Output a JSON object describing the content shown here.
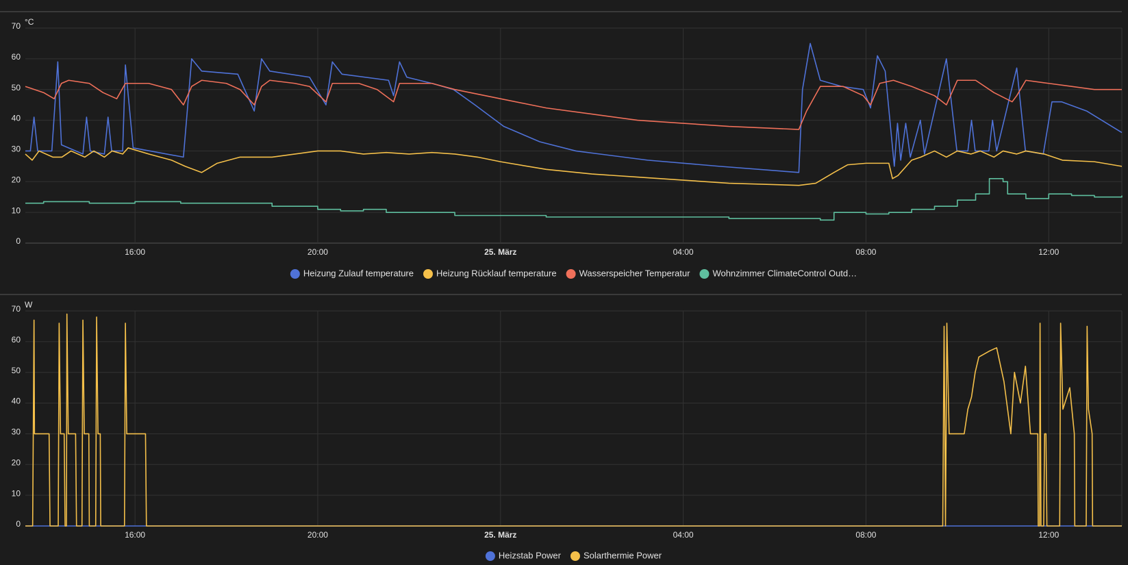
{
  "chart_data": [
    {
      "type": "line",
      "unit": "°C",
      "grid": true,
      "xlim": [
        13.6,
        37.6
      ],
      "xticks": [
        {
          "value": 16,
          "label": "16:00"
        },
        {
          "value": 20,
          "label": "20:00"
        },
        {
          "value": 24,
          "label": "25. März",
          "bold": true
        },
        {
          "value": 28,
          "label": "04:00"
        },
        {
          "value": 32,
          "label": "08:00"
        },
        {
          "value": 36,
          "label": "12:00"
        }
      ],
      "ylim": [
        0,
        70
      ],
      "yticks": [
        0,
        10,
        20,
        30,
        40,
        50,
        60,
        70
      ],
      "series": [
        {
          "name": "Heizung Zulauf temperature",
          "color": "#4f72d8",
          "x": [
            13.6,
            13.71,
            13.79,
            13.87,
            14.18,
            14.31,
            14.39,
            14.86,
            14.94,
            15.02,
            15.33,
            15.41,
            15.49,
            15.73,
            15.79,
            15.96,
            17.06,
            17.24,
            17.46,
            18.25,
            18.61,
            18.77,
            18.95,
            19.82,
            20.18,
            20.32,
            20.53,
            21.55,
            21.66,
            21.79,
            21.95,
            22.5,
            22.97,
            23.44,
            24.07,
            24.86,
            25.65,
            27.22,
            28.8,
            30.53,
            30.61,
            30.78,
            31.0,
            31.47,
            31.94,
            32.1,
            32.25,
            32.42,
            32.62,
            32.69,
            32.76,
            32.87,
            32.97,
            33.19,
            33.28,
            33.76,
            33.99,
            34.23,
            34.31,
            34.39,
            34.69,
            34.77,
            34.86,
            35.3,
            35.49,
            35.88,
            36.07,
            36.28,
            36.83,
            37.6
          ],
          "values": [
            30,
            30,
            41,
            30,
            30,
            59,
            32,
            29,
            41,
            30,
            29,
            41,
            30,
            30,
            58,
            31,
            28,
            60,
            56,
            55,
            43,
            60,
            56,
            54,
            45,
            59,
            55,
            53,
            48,
            59,
            54,
            52,
            50,
            45,
            38,
            33,
            30,
            27,
            25,
            23,
            50,
            65,
            53,
            51,
            50,
            44,
            61,
            56,
            25,
            39,
            27,
            39,
            28,
            40,
            29,
            60,
            30,
            30,
            40,
            30,
            30,
            40,
            30,
            57,
            30,
            29,
            46,
            46,
            43,
            36
          ]
        },
        {
          "name": "Heizung Rücklauf temperature",
          "color": "#f5c04a",
          "x": [
            13.6,
            13.75,
            13.9,
            14.2,
            14.4,
            14.6,
            14.9,
            15.1,
            15.33,
            15.5,
            15.73,
            15.85,
            16.3,
            16.8,
            17.1,
            17.46,
            17.8,
            18.3,
            19.0,
            19.5,
            20.0,
            20.5,
            21.0,
            21.5,
            22.0,
            22.5,
            23.0,
            23.5,
            24.0,
            25.0,
            26.0,
            27.0,
            28.0,
            29.0,
            30.53,
            30.9,
            31.3,
            31.6,
            32.0,
            32.5,
            32.58,
            32.7,
            33.0,
            33.2,
            33.5,
            33.76,
            34.0,
            34.3,
            34.5,
            34.8,
            35.0,
            35.3,
            35.5,
            35.9,
            36.3,
            37.0,
            37.6
          ],
          "values": [
            29,
            27,
            30,
            28,
            28,
            30,
            28,
            30,
            28,
            30,
            29,
            31,
            29,
            27,
            25,
            23,
            26,
            28,
            28,
            29,
            30,
            30,
            29,
            29.5,
            29,
            29.5,
            29,
            28,
            26.5,
            24,
            22.5,
            21.5,
            20.5,
            19.5,
            18.8,
            19.5,
            23,
            25.5,
            26,
            26,
            21,
            22,
            27,
            28,
            30,
            28,
            30,
            29,
            30,
            28,
            30,
            29,
            30,
            29,
            27,
            26.5,
            25
          ]
        },
        {
          "name": "Wasserspeicher Temperatur",
          "color": "#f0705a",
          "x": [
            13.6,
            14.0,
            14.23,
            14.39,
            14.55,
            15.0,
            15.3,
            15.6,
            15.79,
            16.3,
            16.8,
            17.06,
            17.24,
            17.46,
            18.0,
            18.3,
            18.61,
            18.77,
            18.95,
            19.5,
            19.82,
            20.18,
            20.32,
            20.9,
            21.3,
            21.66,
            21.79,
            22.5,
            23.0,
            24.0,
            25.0,
            26.0,
            27.0,
            28.0,
            29.0,
            30.53,
            30.7,
            31.0,
            31.5,
            31.94,
            32.1,
            32.3,
            32.6,
            33.0,
            33.5,
            33.76,
            34.0,
            34.4,
            34.8,
            35.2,
            35.3,
            35.5,
            36.0,
            36.5,
            37.0,
            37.6
          ],
          "values": [
            51,
            49,
            47,
            52,
            53,
            52,
            49,
            47,
            52,
            52,
            50,
            45,
            51,
            53,
            52,
            50,
            45,
            51,
            53,
            52,
            51,
            46,
            52,
            52,
            50,
            46,
            52,
            52,
            50,
            47,
            44,
            42,
            40,
            39,
            38,
            37,
            43,
            51,
            51,
            48,
            45,
            52,
            53,
            51,
            48,
            45,
            53,
            53,
            49,
            46,
            48,
            53,
            52,
            51,
            50,
            50
          ]
        },
        {
          "name": "Wohnzimmer ClimateControl Outd…",
          "color": "#5fbf9f",
          "step": true,
          "x": [
            13.6,
            14.0,
            14.5,
            15.0,
            16.0,
            17.0,
            18.0,
            19.0,
            20.0,
            20.5,
            21.0,
            21.5,
            22.0,
            23.0,
            24.0,
            25.0,
            28.0,
            29.0,
            30.0,
            31.0,
            31.3,
            32.0,
            32.5,
            33.0,
            33.5,
            34.0,
            34.4,
            34.7,
            35.0,
            35.1,
            35.5,
            36.0,
            36.5,
            37.0,
            37.6
          ],
          "values": [
            13,
            13.5,
            13.5,
            13,
            13.5,
            13,
            13,
            12,
            11,
            10.5,
            11,
            10,
            10,
            9,
            9,
            8.5,
            8.5,
            8,
            8,
            7.5,
            10,
            9.5,
            10,
            11,
            12,
            14,
            16,
            21,
            20,
            16,
            14.5,
            16,
            15.5,
            15,
            15.5
          ]
        }
      ]
    },
    {
      "type": "line",
      "unit": "W",
      "grid": true,
      "xlim": [
        13.6,
        37.6
      ],
      "xticks": [
        {
          "value": 16,
          "label": "16:00"
        },
        {
          "value": 20,
          "label": "20:00"
        },
        {
          "value": 24,
          "label": "25. März",
          "bold": true
        },
        {
          "value": 28,
          "label": "04:00"
        },
        {
          "value": 32,
          "label": "08:00"
        },
        {
          "value": 36,
          "label": "12:00"
        }
      ],
      "ylim": [
        0,
        70
      ],
      "yticks": [
        0,
        10,
        20,
        30,
        40,
        50,
        60,
        70
      ],
      "series": [
        {
          "name": "Heizstab Power",
          "color": "#4f72d8",
          "x": [
            13.6,
            37.6
          ],
          "values": [
            0,
            0
          ]
        },
        {
          "name": "Solarthermie Power",
          "color": "#f5c04a",
          "x": [
            13.6,
            13.76,
            13.79,
            13.8,
            14.12,
            14.14,
            14.32,
            14.34,
            14.37,
            14.45,
            14.47,
            14.5,
            14.51,
            14.54,
            14.7,
            14.72,
            14.84,
            14.86,
            14.89,
            14.99,
            15.0,
            15.14,
            15.16,
            15.19,
            15.24,
            15.25,
            15.77,
            15.79,
            15.82,
            16.23,
            16.25,
            33.68,
            33.71,
            33.74,
            33.77,
            33.82,
            34.15,
            34.23,
            34.31,
            34.39,
            34.47,
            34.71,
            34.86,
            35.02,
            35.17,
            35.25,
            35.38,
            35.49,
            35.6,
            35.76,
            35.77,
            35.8,
            35.81,
            35.83,
            35.89,
            35.91,
            35.94,
            35.96,
            36.24,
            36.26,
            36.31,
            36.46,
            36.56,
            36.57,
            36.82,
            36.84,
            36.87,
            36.95,
            36.96,
            37.6
          ],
          "values": [
            0,
            0,
            67,
            30,
            30,
            0,
            0,
            66,
            30,
            30,
            0,
            0,
            69,
            30,
            30,
            0,
            0,
            67,
            30,
            30,
            0,
            0,
            68,
            30,
            30,
            0,
            0,
            66,
            30,
            30,
            0,
            0,
            65,
            0,
            66,
            30,
            30,
            38,
            42,
            50,
            55,
            57,
            58,
            47,
            30,
            50,
            40,
            52,
            30,
            30,
            0,
            0,
            66,
            0,
            0,
            30,
            30,
            0,
            0,
            66,
            38,
            45,
            30,
            0,
            0,
            65,
            38,
            30,
            0,
            0
          ]
        }
      ]
    }
  ]
}
